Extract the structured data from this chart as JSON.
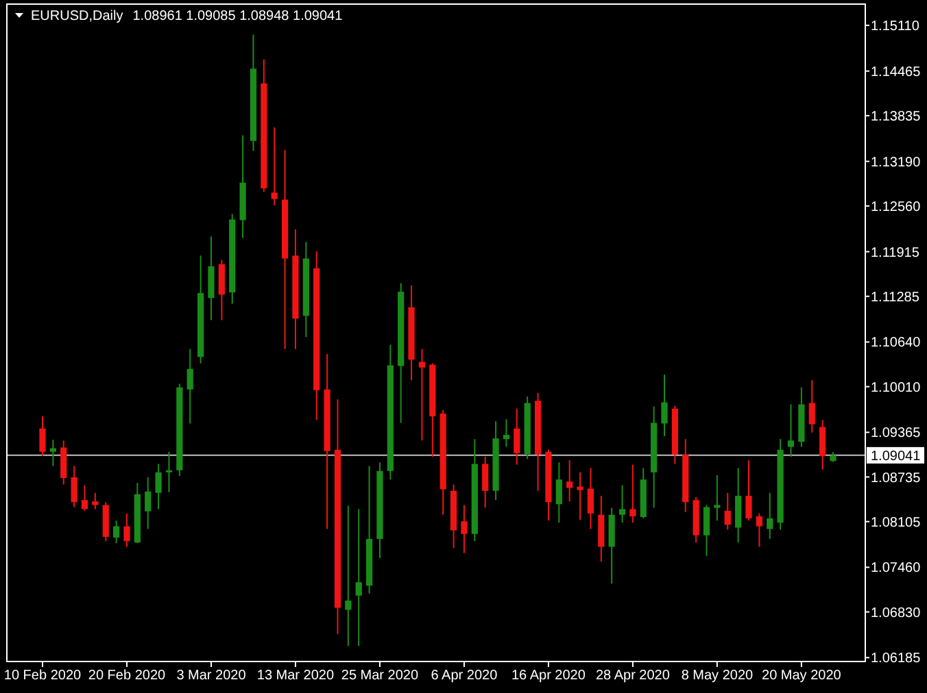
{
  "chart_data": {
    "type": "candlestick",
    "title": "EURUSD,Daily",
    "subtitle": "1.08961 1.09085 1.08948 1.09041",
    "categories": [
      "10 Feb 2020",
      null,
      null,
      null,
      null,
      null,
      null,
      null,
      "20 Feb 2020",
      null,
      null,
      null,
      null,
      null,
      null,
      null,
      "3 Mar 2020",
      null,
      null,
      null,
      null,
      null,
      null,
      null,
      "13 Mar 2020",
      null,
      null,
      null,
      null,
      null,
      null,
      null,
      "25 Mar 2020",
      null,
      null,
      null,
      null,
      null,
      null,
      null,
      "6 Apr 2020",
      null,
      null,
      null,
      null,
      null,
      null,
      null,
      "16 Apr 2020",
      null,
      null,
      null,
      null,
      null,
      null,
      null,
      "28 Apr 2020",
      null,
      null,
      null,
      null,
      null,
      null,
      null,
      "8 May 2020",
      null,
      null,
      null,
      null,
      null,
      null,
      null,
      "20 May 2020",
      null,
      null,
      null
    ],
    "ohlc": [
      [
        1.0942,
        1.0959,
        1.0903,
        1.0909
      ],
      [
        1.0909,
        1.0926,
        1.0889,
        1.0914
      ],
      [
        1.0915,
        1.0925,
        1.0863,
        1.0872
      ],
      [
        1.0873,
        1.0889,
        1.0831,
        1.0838
      ],
      [
        1.0841,
        1.0862,
        1.0826,
        1.0828
      ],
      [
        1.0839,
        1.0851,
        1.0828,
        1.0834
      ],
      [
        1.0834,
        1.0838,
        1.0783,
        1.0789
      ],
      [
        1.0788,
        1.0812,
        1.078,
        1.0804
      ],
      [
        1.0804,
        1.0822,
        1.0775,
        1.0783
      ],
      [
        1.0781,
        1.0865,
        1.078,
        1.0849
      ],
      [
        1.0825,
        1.0873,
        1.08,
        1.0853
      ],
      [
        1.0851,
        1.0892,
        1.0828,
        1.088
      ],
      [
        1.088,
        1.0909,
        1.0852,
        1.0883
      ],
      [
        1.0883,
        1.1005,
        1.0875,
        1.1
      ],
      [
        1.0997,
        1.1054,
        1.0949,
        1.1026
      ],
      [
        1.1043,
        1.1186,
        1.1034,
        1.1133
      ],
      [
        1.1126,
        1.1213,
        1.1095,
        1.1171
      ],
      [
        1.1174,
        1.118,
        1.1095,
        1.1131
      ],
      [
        1.1134,
        1.1245,
        1.1118,
        1.1237
      ],
      [
        1.1236,
        1.1356,
        1.1211,
        1.1289
      ],
      [
        1.1348,
        1.1498,
        1.1334,
        1.145
      ],
      [
        1.1429,
        1.1463,
        1.1276,
        1.1281
      ],
      [
        1.1275,
        1.1367,
        1.1257,
        1.1266
      ],
      [
        1.1265,
        1.1335,
        1.1054,
        1.1182
      ],
      [
        1.1186,
        1.1223,
        1.1054,
        1.1097
      ],
      [
        1.1101,
        1.1205,
        1.1071,
        1.1182
      ],
      [
        1.1168,
        1.1192,
        1.0954,
        1.0996
      ],
      [
        1.0997,
        1.1047,
        1.08,
        1.091
      ],
      [
        1.0912,
        1.0983,
        1.0652,
        1.0689
      ],
      [
        1.0686,
        1.0833,
        1.0635,
        1.0699
      ],
      [
        1.0706,
        1.0828,
        1.0635,
        1.0725
      ],
      [
        1.072,
        1.0889,
        1.0709,
        1.0786
      ],
      [
        1.0786,
        1.0894,
        1.0759,
        1.0882
      ],
      [
        1.0882,
        1.106,
        1.087,
        1.1031
      ],
      [
        1.103,
        1.1147,
        1.095,
        1.1135
      ],
      [
        1.1113,
        1.1144,
        1.101,
        1.1039
      ],
      [
        1.1036,
        1.1054,
        1.0925,
        1.1028
      ],
      [
        1.1032,
        1.1034,
        1.0902,
        1.0959
      ],
      [
        1.0963,
        1.0968,
        1.082,
        1.0856
      ],
      [
        1.0854,
        1.0863,
        1.0773,
        1.0798
      ],
      [
        1.0811,
        1.0834,
        1.0766,
        1.0793
      ],
      [
        1.0793,
        1.0927,
        1.0783,
        1.0892
      ],
      [
        1.0892,
        1.0902,
        1.083,
        1.0854
      ],
      [
        1.0854,
        1.0952,
        1.0841,
        1.0928
      ],
      [
        1.0927,
        1.0955,
        1.0916,
        1.0933
      ],
      [
        1.0942,
        1.097,
        1.0891,
        1.0907
      ],
      [
        1.0906,
        1.0987,
        1.0899,
        1.0978
      ],
      [
        1.0981,
        1.0992,
        1.0854,
        1.0905
      ],
      [
        1.0909,
        1.0912,
        1.0812,
        1.0838
      ],
      [
        1.0835,
        1.0894,
        1.0809,
        1.087
      ],
      [
        1.0867,
        1.0897,
        1.0839,
        1.0858
      ],
      [
        1.086,
        1.088,
        1.0813,
        1.0855
      ],
      [
        1.0857,
        1.0886,
        1.08,
        1.0822
      ],
      [
        1.082,
        1.0847,
        1.0754,
        1.0775
      ],
      [
        1.0775,
        1.083,
        1.0723,
        1.082
      ],
      [
        1.082,
        1.0862,
        1.0809,
        1.0828
      ],
      [
        1.0828,
        1.0891,
        1.0809,
        1.0818
      ],
      [
        1.0817,
        1.0886,
        1.0815,
        1.087
      ],
      [
        1.088,
        1.0973,
        1.083,
        1.095
      ],
      [
        1.0949,
        1.1018,
        1.0931,
        1.0979
      ],
      [
        1.097,
        1.0974,
        1.0892,
        1.0905
      ],
      [
        1.0905,
        1.0927,
        1.0824,
        1.0838
      ],
      [
        1.0841,
        1.0845,
        1.0781,
        1.0791
      ],
      [
        1.0791,
        1.0834,
        1.0762,
        1.0831
      ],
      [
        1.083,
        1.0876,
        1.0812,
        1.0834
      ],
      [
        1.0826,
        1.0851,
        1.0799,
        1.0806
      ],
      [
        1.0802,
        1.0886,
        1.0781,
        1.0847
      ],
      [
        1.0847,
        1.0897,
        1.0812,
        1.0815
      ],
      [
        1.0818,
        1.0822,
        1.0775,
        1.0804
      ],
      [
        1.08,
        1.0851,
        1.0786,
        1.0815
      ],
      [
        1.0809,
        1.0927,
        1.0799,
        1.0912
      ],
      [
        1.0916,
        1.0976,
        1.0902,
        1.0925
      ],
      [
        1.0923,
        1.1,
        1.0916,
        1.0976
      ],
      [
        1.0978,
        1.101,
        1.0936,
        1.0948
      ],
      [
        1.0944,
        1.0954,
        1.0884,
        1.0903
      ],
      [
        1.08961,
        1.09085,
        1.08948,
        1.09041
      ]
    ],
    "colors": [
      "#f01414",
      "#1a8c1a",
      "#f01414",
      "#f01414",
      "#f01414",
      "#f01414",
      "#f01414",
      "#1a8c1a",
      "#f01414",
      "#1a8c1a",
      "#1a8c1a",
      "#1a8c1a",
      "#1a8c1a",
      "#1a8c1a",
      "#1a8c1a",
      "#1a8c1a",
      "#1a8c1a",
      "#f01414",
      "#1a8c1a",
      "#1a8c1a",
      "#1a8c1a",
      "#f01414",
      "#f01414",
      "#f01414",
      "#f01414",
      "#1a8c1a",
      "#f01414",
      "#f01414",
      "#f01414",
      "#1a8c1a",
      "#1a8c1a",
      "#1a8c1a",
      "#1a8c1a",
      "#1a8c1a",
      "#1a8c1a",
      "#f01414",
      "#f01414",
      "#f01414",
      "#f01414",
      "#f01414",
      "#f01414",
      "#1a8c1a",
      "#f01414",
      "#1a8c1a",
      "#1a8c1a",
      "#f01414",
      "#1a8c1a",
      "#f01414",
      "#f01414",
      "#1a8c1a",
      "#f01414",
      "#f01414",
      "#f01414",
      "#f01414",
      "#1a8c1a",
      "#1a8c1a",
      "#f01414",
      "#1a8c1a",
      "#1a8c1a",
      "#1a8c1a",
      "#f01414",
      "#f01414",
      "#f01414",
      "#1a8c1a",
      "#1a8c1a",
      "#f01414",
      "#1a8c1a",
      "#f01414",
      "#f01414",
      "#1a8c1a",
      "#1a8c1a",
      "#1a8c1a",
      "#1a8c1a",
      "#f01414",
      "#f01414",
      "#1a8c1a"
    ],
    "ylim": [
      1.0613,
      1.1541
    ],
    "yticks": [
      {
        "value": 1.1511,
        "label": "1.15110"
      },
      {
        "value": 1.14465,
        "label": "1.14465"
      },
      {
        "value": 1.13835,
        "label": "1.13835"
      },
      {
        "value": 1.1319,
        "label": "1.13190"
      },
      {
        "value": 1.1256,
        "label": "1.12560"
      },
      {
        "value": 1.11915,
        "label": "1.11915"
      },
      {
        "value": 1.11285,
        "label": "1.11285"
      },
      {
        "value": 1.1064,
        "label": "1.10640"
      },
      {
        "value": 1.1001,
        "label": "1.10010"
      },
      {
        "value": 1.09365,
        "label": "1.09365"
      },
      {
        "value": 1.08735,
        "label": "1.08735"
      },
      {
        "value": 1.08105,
        "label": "1.08105"
      },
      {
        "value": 1.0746,
        "label": "1.07460"
      },
      {
        "value": 1.0683,
        "label": "1.06830"
      },
      {
        "value": 1.06185,
        "label": "1.06185"
      }
    ],
    "ref_lines": [
      {
        "axis": "y",
        "value": 1.09041,
        "label": "1.09041",
        "color": "#c0c0c0"
      }
    ]
  }
}
